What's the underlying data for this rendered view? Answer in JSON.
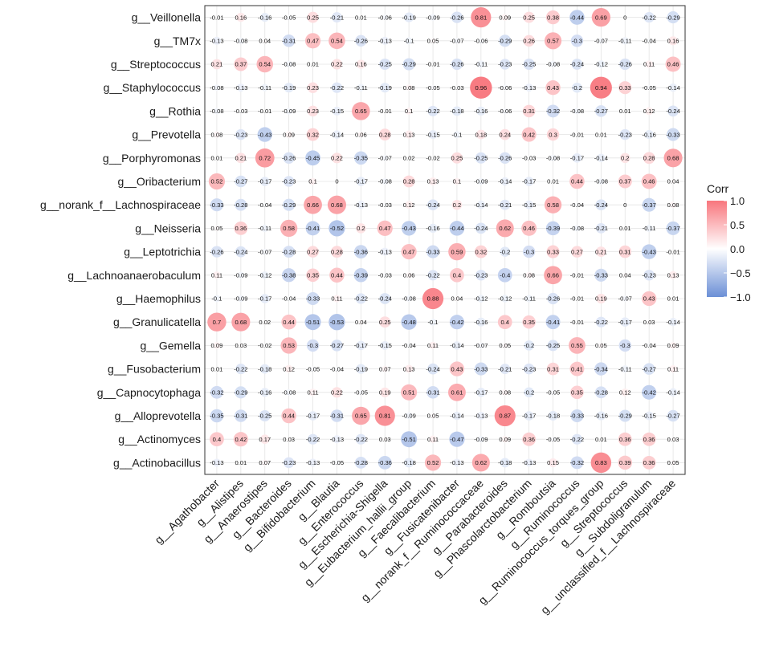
{
  "chart_data": {
    "type": "heatmap",
    "legend_title": "Corr",
    "legend_ticks": [
      "1.0",
      "0.5",
      "0.0",
      "−0.5",
      "−1.0"
    ],
    "legend_tick_values": [
      1.0,
      0.5,
      0.0,
      -0.5,
      -1.0
    ],
    "colors": {
      "positive": "#f8767d",
      "neutral": "#ffffff",
      "negative": "#6b8fd6"
    },
    "value_range": [
      -1,
      1
    ],
    "grid": true,
    "rows": [
      "g__Veillonella",
      "g__TM7x",
      "g__Streptococcus",
      "g__Staphylococcus",
      "g__Rothia",
      "g__Prevotella",
      "g__Porphyromonas",
      "g__Oribacterium",
      "g__norank_f__Lachnospiraceae",
      "g__Neisseria",
      "g__Leptotrichia",
      "g__Lachnoanaerobaculum",
      "g__Haemophilus",
      "g__Granulicatella",
      "g__Gemella",
      "g__Fusobacterium",
      "g__Capnocytophaga",
      "g__Alloprevotella",
      "g__Actinomyces",
      "g__Actinobacillus"
    ],
    "columns": [
      "g__Agathobacter",
      "g__Alistipes",
      "g__Anaerostipes",
      "g__Bacteroides",
      "g__Bifidobacterium",
      "g__Blautia",
      "g__Enterococcus",
      "g__Escherichia-Shigella",
      "g__Eubacterium_hallii_group",
      "g__Faecalibacterium",
      "g__Fusicatenibacter",
      "g__norank_f__Ruminococcaceae",
      "g__Parabacteroides",
      "g__Phascolarctobacterium",
      "g__Romboutsia",
      "g__Ruminococcus",
      "g__Ruminococcus_torques_group",
      "g__Streptococcus",
      "g__Subdoligranulum",
      "g__unclassified_f__Lachnospiraceae"
    ],
    "values": [
      [
        -0.01,
        0.16,
        -0.16,
        -0.05,
        0.25,
        -0.21,
        0.01,
        -0.06,
        -0.19,
        -0.09,
        -0.26,
        0.81,
        0.09,
        0.25,
        0.38,
        -0.44,
        0.69,
        0,
        -0.22,
        -0.29
      ],
      [
        -0.13,
        -0.08,
        0.04,
        -0.31,
        0.47,
        0.54,
        -0.26,
        -0.13,
        -0.1,
        0.05,
        -0.07,
        -0.06,
        -0.29,
        0.26,
        0.57,
        -0.3,
        -0.07,
        -0.11,
        -0.04,
        0.16
      ],
      [
        0.21,
        0.37,
        0.54,
        -0.08,
        0.01,
        0.22,
        0.16,
        -0.25,
        -0.29,
        -0.01,
        -0.26,
        -0.11,
        -0.23,
        -0.25,
        -0.08,
        -0.24,
        -0.12,
        -0.26,
        0.11,
        0.46
      ],
      [
        -0.08,
        -0.13,
        -0.11,
        -0.19,
        0.23,
        -0.22,
        -0.11,
        -0.19,
        0.08,
        -0.05,
        -0.03,
        0.96,
        -0.06,
        -0.13,
        0.43,
        -0.2,
        0.94,
        0.33,
        -0.05,
        -0.14
      ],
      [
        -0.08,
        -0.03,
        -0.01,
        -0.09,
        0.23,
        -0.15,
        0.65,
        -0.01,
        0.1,
        -0.22,
        -0.18,
        -0.16,
        -0.06,
        0.31,
        -0.32,
        -0.08,
        -0.27,
        0.01,
        0.12,
        -0.24
      ],
      [
        0.08,
        -0.23,
        -0.43,
        0.09,
        0.32,
        -0.14,
        0.06,
        0.28,
        0.13,
        -0.15,
        -0.1,
        0.18,
        0.24,
        0.42,
        0.3,
        -0.01,
        0.01,
        -0.23,
        -0.16,
        -0.33
      ],
      [
        0.01,
        0.21,
        0.72,
        -0.26,
        -0.45,
        0.22,
        -0.35,
        -0.07,
        0.02,
        -0.02,
        0.25,
        -0.25,
        -0.26,
        -0.03,
        -0.08,
        -0.17,
        -0.14,
        0.2,
        0.28,
        0.68
      ],
      [
        0.52,
        -0.27,
        -0.17,
        -0.23,
        0.1,
        0,
        -0.17,
        -0.08,
        0.28,
        0.13,
        0.1,
        -0.09,
        -0.14,
        -0.17,
        0.01,
        0.44,
        -0.08,
        0.37,
        0.46,
        0.04
      ],
      [
        -0.33,
        -0.28,
        -0.04,
        -0.29,
        0.66,
        0.68,
        -0.13,
        -0.03,
        0.12,
        -0.24,
        0.2,
        -0.14,
        -0.21,
        -0.15,
        0.58,
        -0.04,
        -0.24,
        0,
        -0.37,
        0.08
      ],
      [
        0.05,
        0.36,
        -0.11,
        0.58,
        -0.41,
        -0.52,
        0.2,
        0.47,
        -0.43,
        -0.16,
        -0.44,
        -0.24,
        0.62,
        0.46,
        -0.39,
        -0.08,
        -0.21,
        0.01,
        -0.11,
        -0.37
      ],
      [
        -0.26,
        -0.24,
        -0.07,
        -0.28,
        0.27,
        0.28,
        -0.36,
        -0.13,
        0.47,
        -0.33,
        0.59,
        0.32,
        -0.2,
        -0.3,
        0.33,
        0.27,
        0.21,
        0.31,
        -0.43,
        -0.01
      ],
      [
        0.11,
        -0.09,
        -0.12,
        -0.38,
        0.35,
        0.44,
        -0.39,
        -0.03,
        0.06,
        -0.22,
        0.4,
        -0.23,
        -0.4,
        0.08,
        0.66,
        -0.01,
        -0.33,
        0.04,
        -0.23,
        0.13
      ],
      [
        -0.1,
        -0.09,
        -0.17,
        -0.04,
        -0.33,
        0.11,
        -0.22,
        -0.24,
        -0.08,
        0.88,
        0.04,
        -0.12,
        -0.12,
        -0.11,
        -0.26,
        -0.01,
        0.19,
        -0.07,
        0.43,
        0.01
      ],
      [
        0.7,
        0.68,
        0.02,
        0.44,
        -0.51,
        -0.53,
        0.04,
        0.25,
        -0.48,
        -0.1,
        -0.42,
        -0.16,
        0.4,
        0.35,
        -0.41,
        -0.01,
        -0.22,
        -0.17,
        0.03,
        -0.14
      ],
      [
        0.09,
        0.03,
        -0.02,
        0.53,
        -0.3,
        -0.27,
        -0.17,
        -0.15,
        -0.04,
        0.11,
        -0.14,
        -0.07,
        0.05,
        -0.2,
        -0.25,
        0.55,
        0.05,
        -0.3,
        -0.04,
        0.09
      ],
      [
        0.01,
        -0.22,
        -0.18,
        0.12,
        -0.05,
        -0.04,
        -0.19,
        0.07,
        0.13,
        -0.24,
        0.43,
        -0.33,
        -0.21,
        -0.23,
        0.31,
        0.41,
        -0.34,
        -0.11,
        -0.27,
        0.11
      ],
      [
        -0.32,
        -0.29,
        -0.16,
        -0.08,
        0.11,
        0.22,
        -0.05,
        0.19,
        0.51,
        -0.31,
        0.61,
        -0.17,
        0.08,
        -0.2,
        -0.05,
        0.35,
        -0.28,
        0.12,
        -0.42,
        -0.14
      ],
      [
        -0.35,
        -0.31,
        -0.25,
        0.44,
        -0.17,
        -0.31,
        0.65,
        0.81,
        -0.09,
        0.05,
        -0.14,
        -0.13,
        0.87,
        -0.17,
        -0.18,
        -0.33,
        -0.16,
        -0.29,
        -0.15,
        -0.27
      ],
      [
        0.4,
        0.42,
        0.17,
        0.03,
        -0.22,
        -0.13,
        -0.22,
        0.03,
        -0.51,
        0.11,
        -0.47,
        -0.09,
        0.09,
        0.36,
        -0.05,
        -0.22,
        0.01,
        0.36,
        0.36,
        0.03
      ],
      [
        -0.13,
        0.01,
        0.07,
        -0.23,
        -0.13,
        -0.05,
        -0.28,
        -0.36,
        -0.18,
        0.52,
        -0.13,
        0.62,
        -0.18,
        -0.13,
        0.15,
        -0.32,
        0.83,
        0.39,
        0.36,
        0.05
      ]
    ]
  }
}
